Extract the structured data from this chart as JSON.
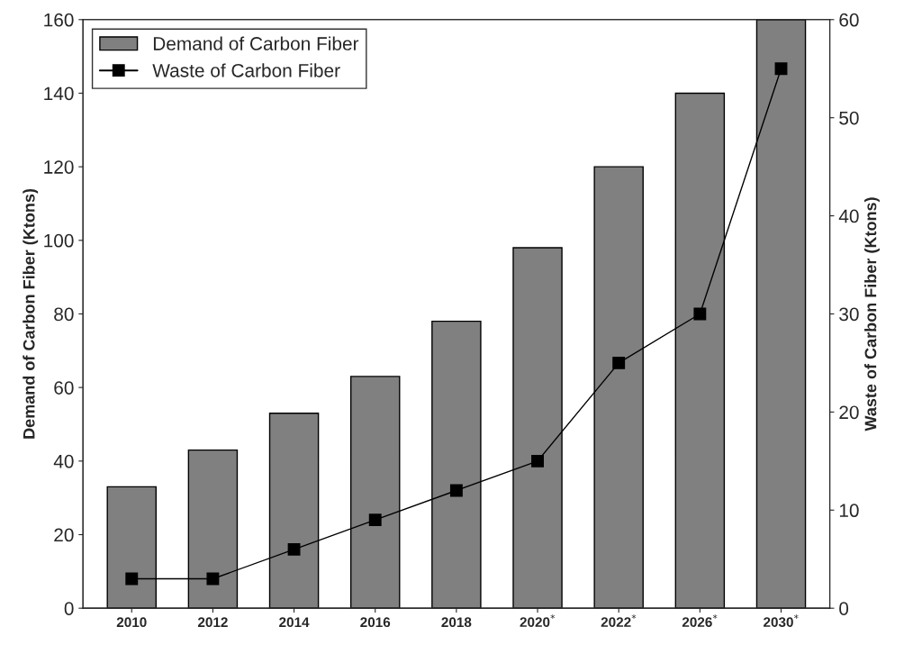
{
  "chart_data": {
    "type": "bar",
    "categories": [
      "2010",
      "2012",
      "2014",
      "2016",
      "2018",
      "2020$^{*}$",
      "2022$^{*}$",
      "2026$^{*}$",
      "2030$^{*}$"
    ],
    "ylabel": "Demand of Carbon Fiber (Ktons)",
    "y2label": "Waste of Carbon Fiber (Ktons)",
    "ylim": [
      0,
      160
    ],
    "yticks": [
      0,
      20,
      40,
      60,
      80,
      100,
      120,
      140,
      160
    ],
    "y2lim": [
      0,
      60
    ],
    "y2ticks": [
      0,
      10,
      20,
      30,
      40,
      50,
      60
    ],
    "legend": "top left",
    "grid": false,
    "series": [
      {
        "name": "Demand of Carbon Fiber",
        "color": "#808080",
        "values": [
          33,
          43,
          53,
          63,
          78,
          98,
          120,
          140,
          160
        ]
      },
      {
        "name": "Waste of Carbon Fiber",
        "type": "line",
        "axis": "y2",
        "color": "#000000",
        "marker": "square",
        "line_style": "solid",
        "values": [
          3,
          3,
          6,
          9,
          12,
          15,
          25,
          30,
          55
        ]
      }
    ]
  }
}
